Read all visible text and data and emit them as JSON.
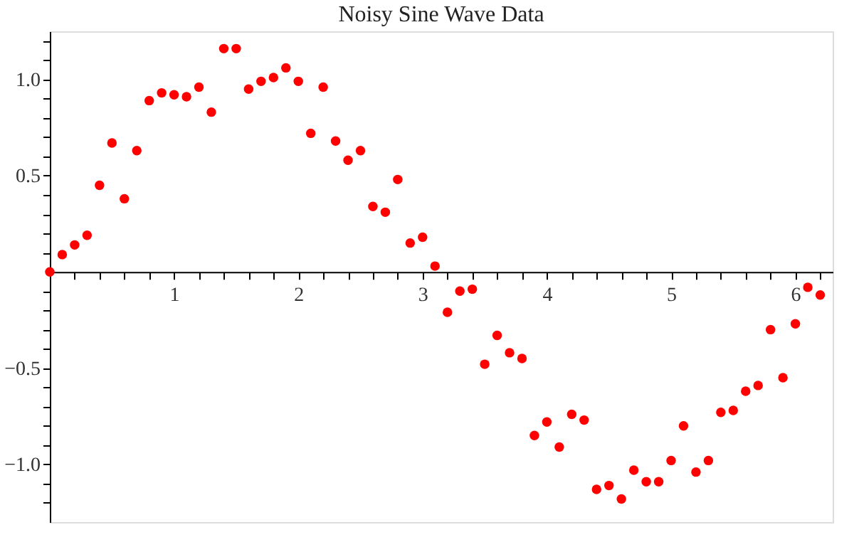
{
  "chart_data": {
    "type": "scatter",
    "title": "Noisy Sine Wave Data",
    "x": [
      0,
      0.1,
      0.2,
      0.3,
      0.4,
      0.5,
      0.6,
      0.7,
      0.8,
      0.9,
      1.0,
      1.1,
      1.2,
      1.3,
      1.4,
      1.5,
      1.6,
      1.7,
      1.8,
      1.9,
      2.0,
      2.1,
      2.2,
      2.3,
      2.4,
      2.5,
      2.6,
      2.7,
      2.8,
      2.9,
      3.0,
      3.1,
      3.2,
      3.3,
      3.4,
      3.5,
      3.6,
      3.7,
      3.8,
      3.9,
      4.0,
      4.1,
      4.2,
      4.3,
      4.4,
      4.5,
      4.6,
      4.7,
      4.8,
      4.9,
      5.0,
      5.1,
      5.2,
      5.3,
      5.4,
      5.5,
      5.6,
      5.7,
      5.8,
      5.9,
      6.0,
      6.1,
      6.2
    ],
    "series": [
      {
        "color": "#ff0000",
        "values": [
          0,
          0.09,
          0.14,
          0.19,
          0.45,
          0.67,
          0.38,
          0.63,
          0.89,
          0.93,
          0.92,
          0.91,
          0.96,
          0.83,
          1.16,
          1.16,
          0.95,
          0.99,
          1.01,
          1.06,
          0.99,
          0.72,
          0.96,
          0.68,
          0.58,
          0.63,
          0.34,
          0.31,
          0.48,
          0.15,
          0.18,
          0.03,
          -0.21,
          -0.1,
          -0.09,
          -0.48,
          -0.33,
          -0.42,
          -0.45,
          -0.85,
          -0.78,
          -0.91,
          -0.74,
          -0.77,
          -1.13,
          -1.11,
          -1.18,
          -1.03,
          -1.09,
          -1.09,
          -0.98,
          -0.8,
          -1.04,
          -0.98,
          -0.73,
          -0.72,
          -0.62,
          -0.59,
          -0.3,
          -0.55,
          -0.27,
          -0.08,
          -0.12
        ]
      }
    ],
    "xlim": [
      0,
      6.3
    ],
    "ylim": [
      -1.3,
      1.25
    ],
    "xticks": [
      {
        "value": 0.2,
        "label": null
      },
      {
        "value": 0.4,
        "label": null
      },
      {
        "value": 0.6,
        "label": null
      },
      {
        "value": 0.8,
        "label": null
      },
      1,
      {
        "value": 1.2,
        "label": null
      },
      {
        "value": 1.4,
        "label": null
      },
      {
        "value": 1.6,
        "label": null
      },
      {
        "value": 1.8,
        "label": null
      },
      2,
      {
        "value": 2.2,
        "label": null
      },
      {
        "value": 2.4,
        "label": null
      },
      {
        "value": 2.6,
        "label": null
      },
      {
        "value": 2.8,
        "label": null
      },
      3,
      {
        "value": 3.2,
        "label": null
      },
      {
        "value": 3.4,
        "label": null
      },
      {
        "value": 3.6,
        "label": null
      },
      {
        "value": 3.8,
        "label": null
      },
      4,
      {
        "value": 4.2,
        "label": null
      },
      {
        "value": 4.4,
        "label": null
      },
      {
        "value": 4.6,
        "label": null
      },
      {
        "value": 4.8,
        "label": null
      },
      5,
      {
        "value": 5.2,
        "label": null
      },
      {
        "value": 5.4,
        "label": null
      },
      {
        "value": 5.6,
        "label": null
      },
      {
        "value": 5.8,
        "label": null
      },
      6,
      {
        "value": 6.2,
        "label": null
      }
    ],
    "yticks": [
      {
        "value": -1.2,
        "label": null
      },
      {
        "value": -1.1,
        "label": null
      },
      {
        "value": -1.0,
        "label": "−1.0"
      },
      {
        "value": -0.9,
        "label": null
      },
      {
        "value": -0.8,
        "label": null
      },
      {
        "value": -0.7,
        "label": null
      },
      {
        "value": -0.6,
        "label": null
      },
      {
        "value": -0.5,
        "label": "−0.5"
      },
      {
        "value": -0.4,
        "label": null
      },
      {
        "value": -0.3,
        "label": null
      },
      {
        "value": -0.2,
        "label": null
      },
      {
        "value": -0.1,
        "label": null
      },
      {
        "value": 0.1,
        "label": null
      },
      {
        "value": 0.2,
        "label": null
      },
      {
        "value": 0.3,
        "label": null
      },
      {
        "value": 0.4,
        "label": null
      },
      {
        "value": 0.5,
        "label": "0.5"
      },
      {
        "value": 0.6,
        "label": null
      },
      {
        "value": 0.7,
        "label": null
      },
      {
        "value": 0.8,
        "label": null
      },
      {
        "value": 0.9,
        "label": null
      },
      {
        "value": 1.0,
        "label": "1.0"
      },
      {
        "value": 1.1,
        "label": null
      },
      {
        "value": 1.2,
        "label": null
      }
    ],
    "marker": "circle",
    "grid": false
  }
}
